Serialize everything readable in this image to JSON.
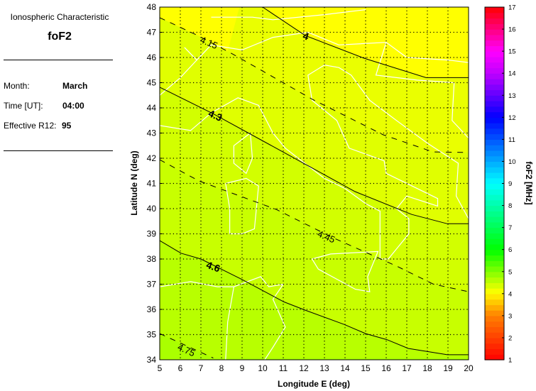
{
  "info": {
    "heading": "Ionospheric Characteristic",
    "characteristic": "foF2",
    "month_label": "Month:",
    "month": "March",
    "time_label": "Time [UT]:",
    "time": "04:00",
    "r12_label": "Effective R12:",
    "r12": "95"
  },
  "chart_data": {
    "type": "contour-map",
    "xlabel": "Longitude E (deg)",
    "ylabel": "Latitude N (deg)",
    "xlim": [
      5,
      20
    ],
    "ylim": [
      34,
      48
    ],
    "xticks": [
      5,
      6,
      7,
      8,
      9,
      10,
      11,
      12,
      13,
      14,
      15,
      16,
      17,
      18,
      19,
      20
    ],
    "yticks": [
      34,
      35,
      36,
      37,
      38,
      39,
      40,
      41,
      42,
      43,
      44,
      45,
      46,
      47,
      48
    ],
    "grid": true,
    "colorbar": {
      "label": "foF2 [MHz]",
      "range": [
        1,
        17
      ],
      "ticks": [
        1,
        2,
        3,
        4,
        5,
        6,
        7,
        8,
        9,
        10,
        11,
        12,
        13,
        14,
        15,
        16,
        17
      ]
    },
    "contours": [
      {
        "level": "4",
        "style": "solid",
        "points": [
          [
            10,
            48
          ],
          [
            12.07,
            46.87
          ],
          [
            14.93,
            45.97
          ],
          [
            17.93,
            45.2
          ],
          [
            20,
            45.2
          ]
        ],
        "label_at": [
          12.1,
          46.85
        ]
      },
      {
        "level": "4.15",
        "style": "dashed",
        "points": [
          [
            5,
            47.58
          ],
          [
            6.9,
            46.85
          ],
          [
            8.62,
            46.1
          ],
          [
            12.41,
            44.34
          ],
          [
            15.86,
            42.93
          ],
          [
            18.28,
            42.25
          ],
          [
            20,
            42.23
          ]
        ],
        "label_at": [
          7.4,
          46.6
        ]
      },
      {
        "level": "4.3",
        "style": "solid",
        "points": [
          [
            5,
            44.82
          ],
          [
            7.59,
            43.77
          ],
          [
            11.03,
            42.23
          ],
          [
            14.48,
            40.68
          ],
          [
            17.24,
            39.77
          ],
          [
            18.97,
            39.4
          ],
          [
            20,
            39.4
          ]
        ],
        "label_at": [
          7.7,
          43.7
        ]
      },
      {
        "level": "4.45",
        "style": "dashed",
        "points": [
          [
            5,
            41.94
          ],
          [
            6.9,
            41.1
          ],
          [
            10.66,
            39.97
          ],
          [
            13.4,
            38.85
          ],
          [
            16.5,
            37.72
          ],
          [
            18.3,
            37.0
          ],
          [
            20,
            36.7
          ]
        ],
        "label_at": [
          13.1,
          38.9
        ]
      },
      {
        "level": "4.6",
        "style": "solid",
        "points": [
          [
            5,
            38.73
          ],
          [
            6.03,
            38.23
          ],
          [
            7,
            38
          ],
          [
            8.97,
            37.2
          ],
          [
            11.03,
            36.3
          ],
          [
            12.07,
            35.97
          ],
          [
            13.97,
            35.4
          ],
          [
            15,
            35.04
          ],
          [
            16.03,
            34.8
          ],
          [
            17.07,
            34.45
          ],
          [
            18.97,
            34.2
          ],
          [
            20,
            34.2
          ]
        ],
        "label_at": [
          7.6,
          37.7
        ]
      },
      {
        "level": "4.75",
        "style": "dashed",
        "points": [
          [
            5,
            35.04
          ],
          [
            7.6,
            34.07
          ]
        ],
        "label_at": [
          6.3,
          34.4
        ]
      }
    ],
    "bands": [
      {
        "min": 3.85,
        "color": "#ffff00"
      },
      {
        "min": 4.0,
        "color": "#eaff00"
      },
      {
        "min": 4.15,
        "color": "#e0ff00"
      },
      {
        "min": 4.3,
        "color": "#d2ff00"
      },
      {
        "min": 4.45,
        "color": "#c8ff00"
      },
      {
        "min": 4.6,
        "color": "#b8ff00"
      },
      {
        "min": 4.75,
        "color": "#aaff00"
      }
    ],
    "coastline_color": "#ffffff"
  }
}
